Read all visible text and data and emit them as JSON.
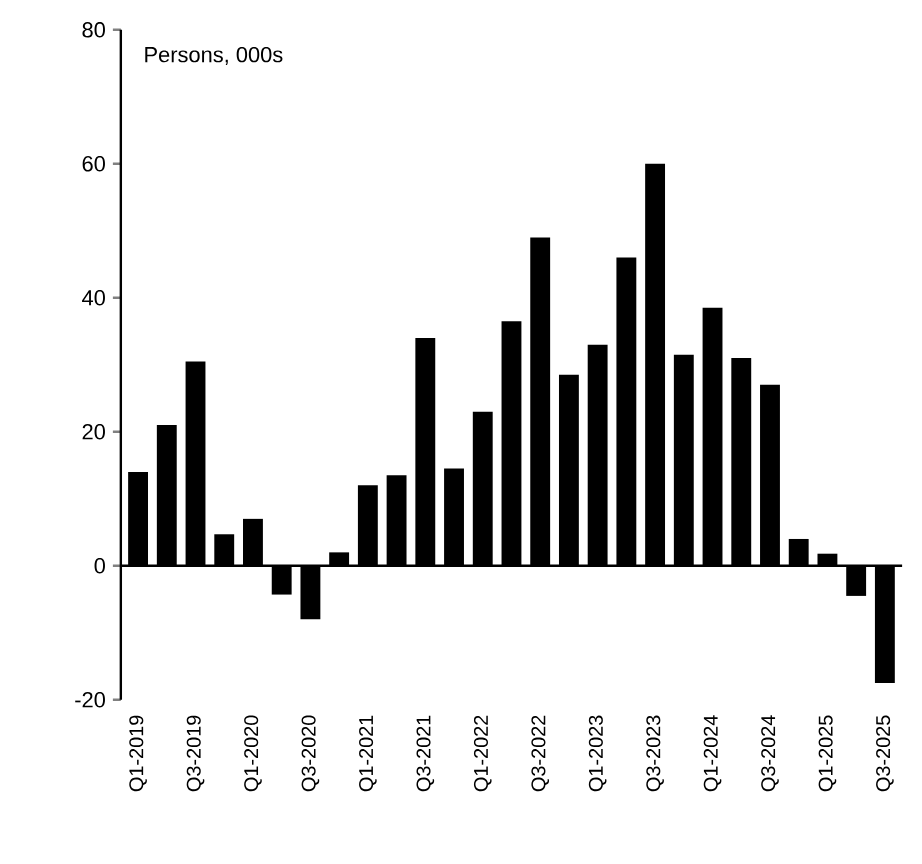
{
  "chart_data": {
    "type": "bar",
    "ylabel": "Persons, 000s",
    "color": "#000000",
    "categories": [
      "Q1-2019",
      null,
      "Q3-2019",
      null,
      "Q1-2020",
      null,
      "Q3-2020",
      null,
      "Q1-2021",
      null,
      "Q3-2021",
      null,
      "Q1-2022",
      null,
      "Q3-2022",
      null,
      "Q1-2023",
      null,
      "Q3-2023",
      null,
      "Q1-2024",
      null,
      "Q3-2024",
      null,
      "Q1-2025",
      null,
      "Q3-2025"
    ],
    "values": [
      14,
      21,
      30.5,
      4.7,
      7,
      -4.3,
      -8,
      2,
      12,
      13.5,
      34,
      14.5,
      23,
      36.5,
      49,
      28.5,
      33,
      46,
      60,
      31.5,
      38.5,
      31,
      27,
      4,
      1.8,
      -4.5,
      -17.5
    ],
    "ylim": [
      -20,
      80
    ],
    "yticks": [
      -20,
      0,
      20,
      40,
      60,
      80
    ]
  }
}
